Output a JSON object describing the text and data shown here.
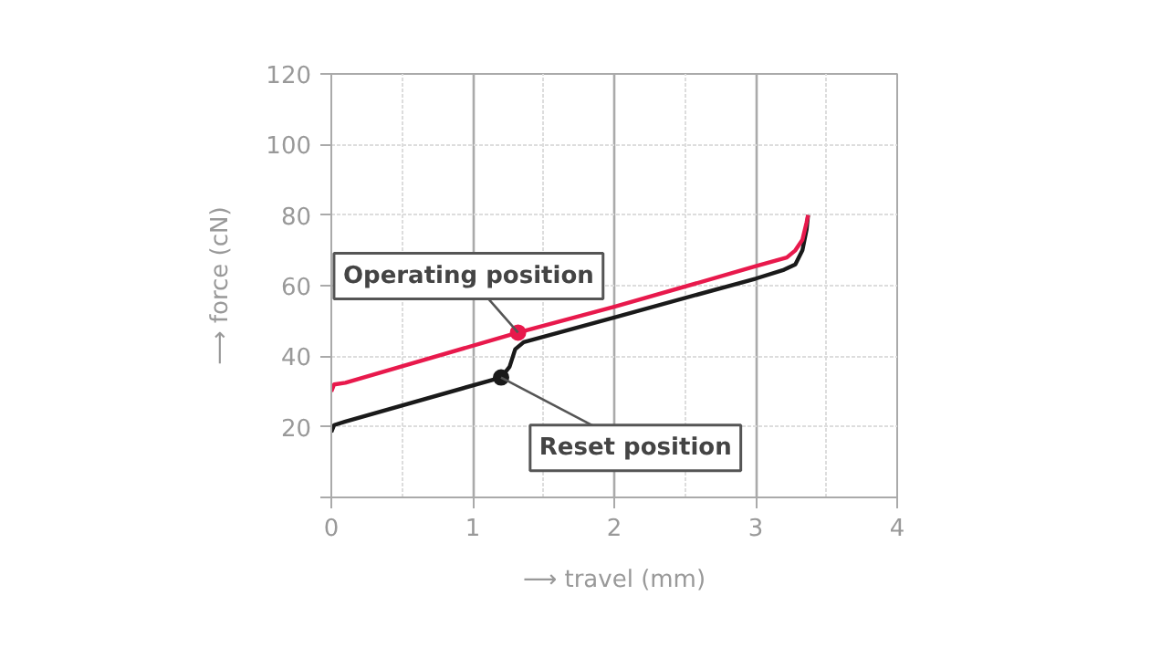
{
  "chart_data": {
    "type": "line",
    "xlabel": "⟶ travel (mm)",
    "ylabel": "⟶ force (cN)",
    "xlim": [
      0,
      4
    ],
    "ylim": [
      0,
      120
    ],
    "xticks": [
      0,
      1,
      2,
      3,
      4
    ],
    "yticks": [
      {
        "value": 0,
        "label": null
      },
      20,
      40,
      60,
      80,
      100,
      120
    ],
    "grid": true,
    "line_style": "solid",
    "series": [
      {
        "color": "#1a1a1a",
        "x": [
          0,
          0.02,
          0.1,
          1.2,
          1.26,
          1.3,
          1.36,
          2,
          3,
          3.2,
          3.28,
          3.33,
          3.36,
          3.37
        ],
        "values": [
          18.5,
          20.5,
          21.5,
          34,
          37,
          42,
          44,
          51,
          62,
          64.5,
          66,
          70,
          76,
          80
        ]
      },
      {
        "color": "#e8194c",
        "x": [
          0,
          0.02,
          0.1,
          1.32,
          2,
          3,
          3.22,
          3.28,
          3.33,
          3.36,
          3.37
        ],
        "values": [
          30,
          32,
          32.5,
          46.7,
          54,
          65.5,
          68,
          70,
          73,
          78,
          80
        ]
      },
      {
        "type": "scatter",
        "marker": "circle",
        "color": "#1a1a1a",
        "x": [
          1.2
        ],
        "values": [
          34
        ]
      },
      {
        "type": "scatter",
        "marker": "circle",
        "color": "#e8194c",
        "x": [
          1.32
        ],
        "values": [
          46.7
        ]
      }
    ],
    "annotations": [
      {
        "text": "Operating position",
        "x": 1.32,
        "y": 46.7
      },
      {
        "text": "Reset position",
        "x": 1.2,
        "y": 34
      }
    ]
  }
}
